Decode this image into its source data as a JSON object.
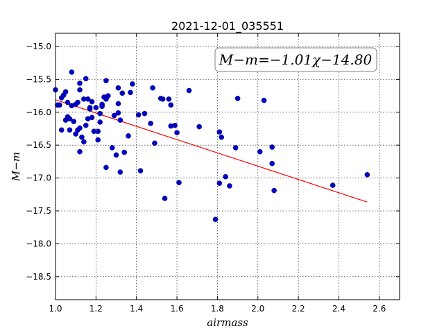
{
  "chart_data": {
    "type": "scatter",
    "title": "2021-12-01_035551",
    "xlabel": "airmass",
    "ylabel": "M−m",
    "xlim": [
      1.0,
      2.7
    ],
    "ylim": [
      -18.85,
      -14.8
    ],
    "xticks": [
      "1.0",
      "1.2",
      "1.4",
      "1.6",
      "1.8",
      "2.0",
      "2.2",
      "2.4",
      "2.6"
    ],
    "yticks": [
      "−15.0",
      "−15.5",
      "−16.0",
      "−16.5",
      "−17.0",
      "−17.5",
      "−18.0",
      "−18.5"
    ],
    "grid": true,
    "annotation": "M−m=−1.01χ−14.80",
    "fit": {
      "slope": -1.01,
      "intercept": -14.8,
      "x_range": [
        1.0,
        2.54
      ],
      "color": "#ff0000"
    },
    "point_color": "#0000cc",
    "points": [
      [
        1.0,
        -15.66
      ],
      [
        1.01,
        -15.89
      ],
      [
        1.02,
        -15.89
      ],
      [
        1.03,
        -15.78
      ],
      [
        1.03,
        -16.27
      ],
      [
        1.04,
        -15.74
      ],
      [
        1.05,
        -15.69
      ],
      [
        1.05,
        -16.12
      ],
      [
        1.06,
        -15.85
      ],
      [
        1.06,
        -16.07
      ],
      [
        1.07,
        -16.1
      ],
      [
        1.07,
        -16.27
      ],
      [
        1.08,
        -15.39
      ],
      [
        1.08,
        -15.9
      ],
      [
        1.09,
        -16.14
      ],
      [
        1.1,
        -16.33
      ],
      [
        1.1,
        -15.88
      ],
      [
        1.11,
        -15.85
      ],
      [
        1.11,
        -16.27
      ],
      [
        1.12,
        -15.56
      ],
      [
        1.12,
        -15.66
      ],
      [
        1.12,
        -16.6
      ],
      [
        1.12,
        -16.24
      ],
      [
        1.13,
        -16.38
      ],
      [
        1.14,
        -16.45
      ],
      [
        1.14,
        -15.8
      ],
      [
        1.15,
        -16.2
      ],
      [
        1.15,
        -15.49
      ],
      [
        1.16,
        -15.8
      ],
      [
        1.16,
        -16.1
      ],
      [
        1.17,
        -15.93
      ],
      [
        1.17,
        -15.95
      ],
      [
        1.18,
        -15.84
      ],
      [
        1.18,
        -16.08
      ],
      [
        1.19,
        -16.29
      ],
      [
        1.2,
        -15.93
      ],
      [
        1.21,
        -16.42
      ],
      [
        1.21,
        -16.29
      ],
      [
        1.22,
        -16.02
      ],
      [
        1.22,
        -16.15
      ],
      [
        1.23,
        -15.88
      ],
      [
        1.23,
        -15.91
      ],
      [
        1.24,
        -15.77
      ],
      [
        1.25,
        -15.8
      ],
      [
        1.25,
        -15.52
      ],
      [
        1.25,
        -16.84
      ],
      [
        1.26,
        -15.75
      ],
      [
        1.28,
        -16.54
      ],
      [
        1.29,
        -16.05
      ],
      [
        1.3,
        -16.65
      ],
      [
        1.31,
        -16.01
      ],
      [
        1.31,
        -15.87
      ],
      [
        1.31,
        -15.63
      ],
      [
        1.32,
        -16.12
      ],
      [
        1.32,
        -16.91
      ],
      [
        1.33,
        -15.71
      ],
      [
        1.34,
        -16.61
      ],
      [
        1.36,
        -16.36
      ],
      [
        1.37,
        -15.7
      ],
      [
        1.38,
        -15.57
      ],
      [
        1.41,
        -16.04
      ],
      [
        1.42,
        -16.89
      ],
      [
        1.44,
        -16.02
      ],
      [
        1.47,
        -16.17
      ],
      [
        1.48,
        -15.63
      ],
      [
        1.49,
        -16.47
      ],
      [
        1.52,
        -15.79
      ],
      [
        1.53,
        -15.8
      ],
      [
        1.54,
        -17.31
      ],
      [
        1.56,
        -15.8
      ],
      [
        1.57,
        -15.89
      ],
      [
        1.57,
        -16.21
      ],
      [
        1.59,
        -16.2
      ],
      [
        1.6,
        -16.31
      ],
      [
        1.61,
        -17.07
      ],
      [
        1.66,
        -15.67
      ],
      [
        1.71,
        -16.22
      ],
      [
        1.79,
        -17.63
      ],
      [
        1.81,
        -16.3
      ],
      [
        1.81,
        -17.08
      ],
      [
        1.82,
        -16.38
      ],
      [
        1.84,
        -16.98
      ],
      [
        1.86,
        -17.12
      ],
      [
        1.89,
        -16.54
      ],
      [
        1.9,
        -15.79
      ],
      [
        2.01,
        -16.6
      ],
      [
        2.03,
        -15.82
      ],
      [
        2.07,
        -16.53
      ],
      [
        2.07,
        -16.78
      ],
      [
        2.08,
        -17.19
      ],
      [
        2.37,
        -17.11
      ],
      [
        2.54,
        -16.95
      ]
    ]
  }
}
